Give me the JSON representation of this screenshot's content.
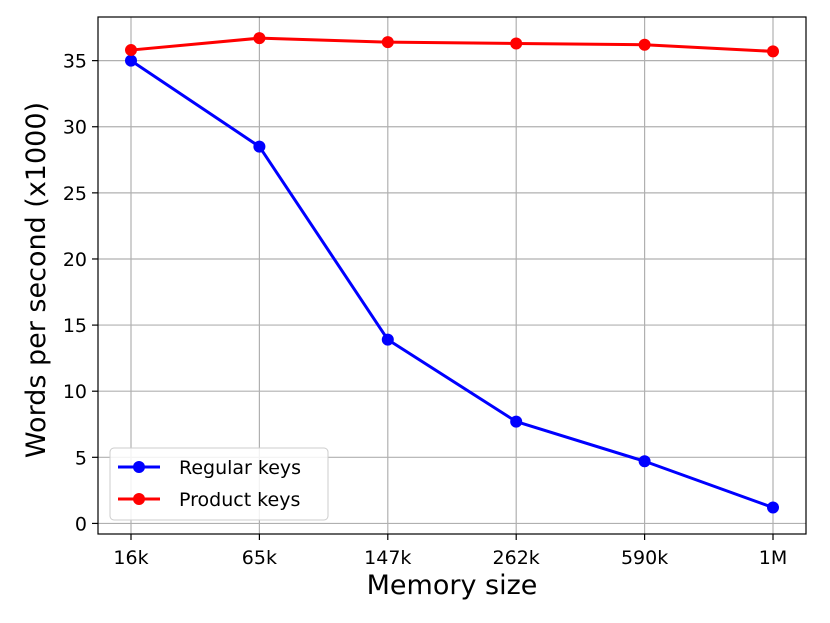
{
  "chart_data": {
    "type": "line",
    "categories": [
      "16k",
      "65k",
      "147k",
      "262k",
      "590k",
      "1M"
    ],
    "series": [
      {
        "name": "Regular keys",
        "color": "#0000ff",
        "values": [
          35.0,
          28.5,
          13.9,
          7.7,
          4.7,
          1.2
        ]
      },
      {
        "name": "Product keys",
        "color": "#ff0000",
        "values": [
          35.8,
          36.7,
          36.4,
          36.3,
          36.2,
          35.7
        ]
      }
    ],
    "title": "",
    "xlabel": "Memory size",
    "ylabel": "Words per second (x1000)",
    "ylim": [
      -0.8,
      38.3
    ],
    "yticks": [
      0,
      5,
      10,
      15,
      20,
      25,
      30,
      35
    ],
    "grid": true,
    "legend_position": "lower-left"
  }
}
